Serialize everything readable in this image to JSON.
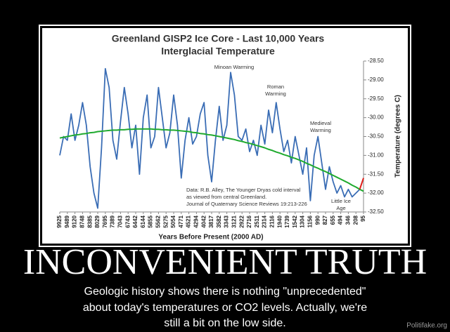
{
  "chart_data": {
    "type": "line",
    "title": "Greenland GISP2 Ice Core - Last 10,000 Years",
    "subtitle": "Interglacial Temperature",
    "x_label": "Years Before Present (2000 AD)",
    "y_label": "Temperature (degrees C)",
    "categories": [
      "9925",
      null,
      "9489",
      null,
      "9120",
      null,
      "8748",
      null,
      "8385",
      null,
      "8029",
      null,
      "7695",
      null,
      "7389",
      null,
      "7043",
      null,
      "6743",
      null,
      "6442",
      null,
      "6144",
      null,
      "5855",
      null,
      "5562",
      null,
      "5275",
      null,
      "5054",
      null,
      "4771",
      null,
      "4521",
      null,
      "4294",
      null,
      "4042",
      null,
      "3817",
      null,
      "3582",
      null,
      "3343",
      null,
      "3121",
      null,
      "2922",
      null,
      "2716",
      null,
      "2511",
      null,
      "2314",
      null,
      "2116",
      null,
      "1940",
      null,
      "1739",
      null,
      "1542",
      null,
      "1304",
      null,
      "1156",
      null,
      "990",
      null,
      "827",
      null,
      "655",
      null,
      "494",
      null,
      "346",
      null,
      "208",
      null,
      "95"
    ],
    "series": [
      {
        "color": "#3a6db5",
        "values": [
          -31.0,
          -30.5,
          -30.6,
          -29.9,
          -30.6,
          -30.2,
          -29.6,
          -30.2,
          -31.3,
          -32.0,
          -32.4,
          -30.8,
          -28.7,
          -29.2,
          -30.6,
          -31.1,
          -30.1,
          -29.2,
          -29.9,
          -30.8,
          -30.2,
          -31.5,
          -30.0,
          -29.4,
          -30.8,
          -30.5,
          -29.2,
          -30.0,
          -30.8,
          -30.4,
          -29.4,
          -30.2,
          -31.6,
          -30.6,
          -30.0,
          -30.7,
          -30.5,
          -29.9,
          -29.6,
          -31.0,
          -31.7,
          -30.6,
          -29.7,
          -30.6,
          -30.2,
          -28.8,
          -29.4,
          -30.5,
          -30.6,
          -30.3,
          -30.9,
          -30.6,
          -31.0,
          -30.2,
          -30.7,
          -29.8,
          -30.4,
          -29.6,
          -30.3,
          -30.9,
          -30.6,
          -31.2,
          -30.5,
          -31.0,
          -31.5,
          -30.8,
          -32.2,
          -31.0,
          -30.5,
          -31.2,
          -31.9,
          -31.3,
          -31.7,
          -32.0,
          -31.8,
          -32.1,
          -31.9,
          -32.1,
          -32.0,
          -31.9,
          null
        ]
      },
      {
        "color": "#1faa2e",
        "values": [
          -30.54,
          -30.52,
          -30.5,
          -30.48,
          -30.46,
          -30.45,
          -30.43,
          -30.42,
          -30.4,
          -30.39,
          -30.37,
          -30.36,
          -30.35,
          -30.34,
          -30.33,
          -30.33,
          -30.32,
          -30.32,
          -30.31,
          -30.31,
          -30.3,
          -30.3,
          -30.3,
          -30.3,
          -30.3,
          -30.31,
          -30.31,
          -30.32,
          -30.32,
          -30.33,
          -30.33,
          -30.34,
          -30.35,
          -30.36,
          -30.37,
          -30.39,
          -30.4,
          -30.42,
          -30.43,
          -30.45,
          -30.46,
          -30.48,
          -30.5,
          -30.52,
          -30.54,
          -30.56,
          -30.58,
          -30.61,
          -30.63,
          -30.66,
          -30.68,
          -30.71,
          -30.74,
          -30.77,
          -30.8,
          -30.84,
          -30.87,
          -30.91,
          -30.94,
          -30.98,
          -31.01,
          -31.05,
          -31.08,
          -31.12,
          -31.16,
          -31.21,
          -31.25,
          -31.3,
          -31.34,
          -31.39,
          -31.43,
          -31.48,
          -31.53,
          -31.58,
          -31.63,
          -31.68,
          -31.73,
          -31.79,
          -31.84,
          -31.9,
          -31.95
        ]
      },
      {
        "color": "#e0201c",
        "values": [
          null,
          null,
          null,
          null,
          null,
          null,
          null,
          null,
          null,
          null,
          null,
          null,
          null,
          null,
          null,
          null,
          null,
          null,
          null,
          null,
          null,
          null,
          null,
          null,
          null,
          null,
          null,
          null,
          null,
          null,
          null,
          null,
          null,
          null,
          null,
          null,
          null,
          null,
          null,
          null,
          null,
          null,
          null,
          null,
          null,
          null,
          null,
          null,
          null,
          null,
          null,
          null,
          null,
          null,
          null,
          null,
          null,
          null,
          null,
          null,
          null,
          null,
          null,
          null,
          null,
          null,
          null,
          null,
          null,
          null,
          null,
          null,
          null,
          null,
          null,
          null,
          null,
          null,
          null,
          -31.9,
          -31.6
        ]
      }
    ],
    "ylim": [
      -32.5,
      -28.5
    ],
    "yticks": [
      {
        "value": -28.5,
        "label": "-28.50"
      },
      {
        "value": -29.0,
        "label": "-29.00"
      },
      {
        "value": -29.5,
        "label": "-29.50"
      },
      {
        "value": -30.0,
        "label": "-30.00"
      },
      {
        "value": -30.5,
        "label": "-30.50"
      },
      {
        "value": -31.0,
        "label": "-31.00"
      },
      {
        "value": -31.5,
        "label": "-31.50"
      },
      {
        "value": -32.0,
        "label": "-32.00"
      },
      {
        "value": -32.5,
        "label": "-32.50"
      }
    ],
    "grid": false,
    "annotations": [
      {
        "lines": [
          "Minoan Warming"
        ]
      },
      {
        "lines": [
          "Roman",
          "Warming"
        ]
      },
      {
        "lines": [
          "Medieval",
          "Warming"
        ]
      },
      {
        "lines": [
          "Little Ice",
          "Age"
        ]
      },
      {
        "lines": [
          "Data: R.B. Alley,  The Younger Dryas cold interval",
          "as viewed from central Greenland.",
          "Journal of Quaternary  Science Reviews 19:213-226"
        ]
      }
    ]
  },
  "poster": {
    "headline": "INCONVENIENT TRUTH",
    "caption": [
      "Geologic history shows there is nothing \"unprecedented\"",
      "about today's temperatures or CO2 levels. Actually, we're",
      "still a bit on the low side."
    ],
    "watermark": "Politifake.org"
  }
}
